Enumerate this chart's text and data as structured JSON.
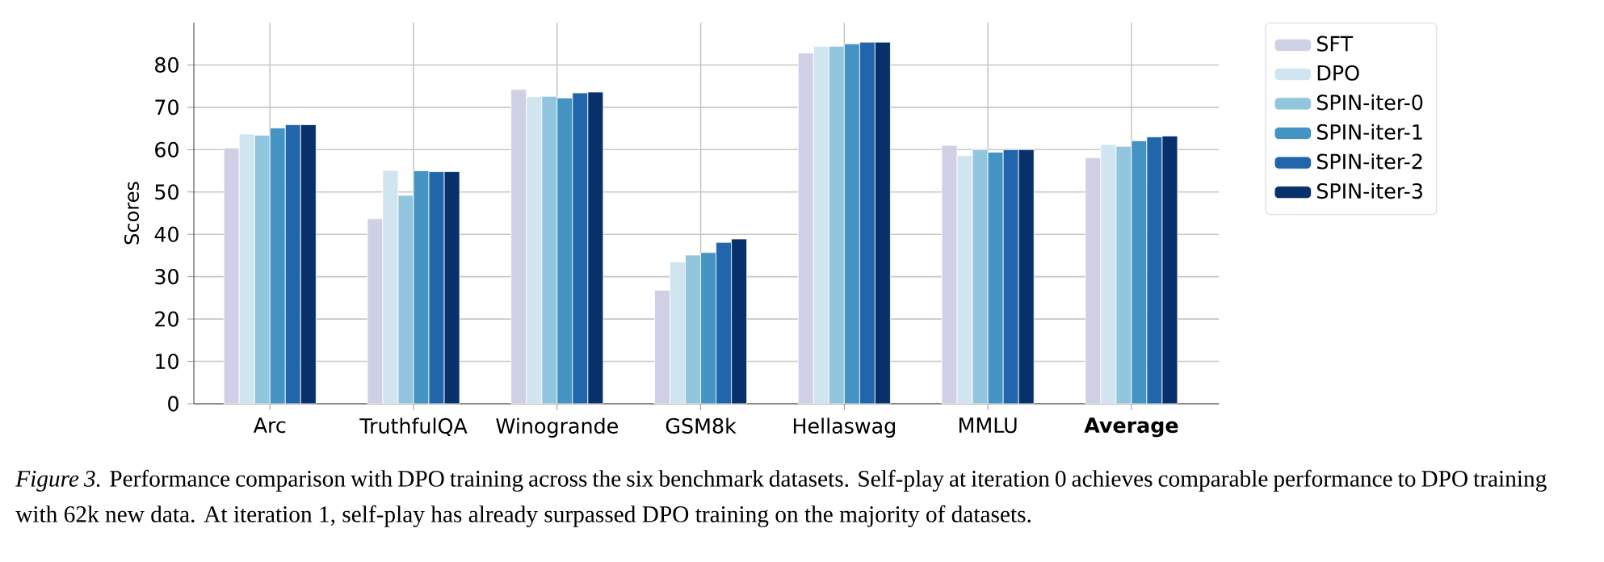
{
  "chart_data": {
    "type": "bar",
    "ylabel": "Scores",
    "categories": [
      "Arc",
      "TruthfulQA",
      "Winogrande",
      "GSM8k",
      "Hellaswag",
      "MMLU",
      "**Average**"
    ],
    "series": [
      {
        "name": "SFT",
        "color": "#cfd0e6",
        "values": [
          60.4,
          43.7,
          74.2,
          26.8,
          82.8,
          61.0,
          58.1
        ]
      },
      {
        "name": "DPO",
        "color": "#d1e5f0",
        "values": [
          63.7,
          55.1,
          72.5,
          33.5,
          84.4,
          58.6,
          61.2
        ]
      },
      {
        "name": "SPIN-iter-0",
        "color": "#92c5de",
        "values": [
          63.4,
          49.2,
          72.6,
          35.1,
          84.4,
          60.0,
          60.8
        ]
      },
      {
        "name": "SPIN-iter-1",
        "color": "#4393c3",
        "values": [
          65.1,
          55.0,
          72.2,
          35.7,
          85.0,
          59.4,
          62.1
        ]
      },
      {
        "name": "SPIN-iter-2",
        "color": "#2166ac",
        "values": [
          65.9,
          54.8,
          73.4,
          38.1,
          85.4,
          60.0,
          63.0
        ]
      },
      {
        "name": "SPIN-iter-3",
        "color": "#08306b",
        "values": [
          65.9,
          54.8,
          73.6,
          38.9,
          85.4,
          60.0,
          63.2
        ]
      }
    ],
    "ylim": [
      0,
      90
    ],
    "yticks": [
      0,
      10,
      20,
      30,
      40,
      50,
      60,
      70,
      80
    ],
    "grid": true,
    "legend": "top right",
    "annotations": [
      "*Figure 3.* Performance comparison with DPO training across the six benchmark datasets. Self-play at iteration 0 achieves comparable performance to DPO training with 62k new data. At iteration 1, self-play has already surpassed DPO training on the majority of datasets."
    ]
  }
}
